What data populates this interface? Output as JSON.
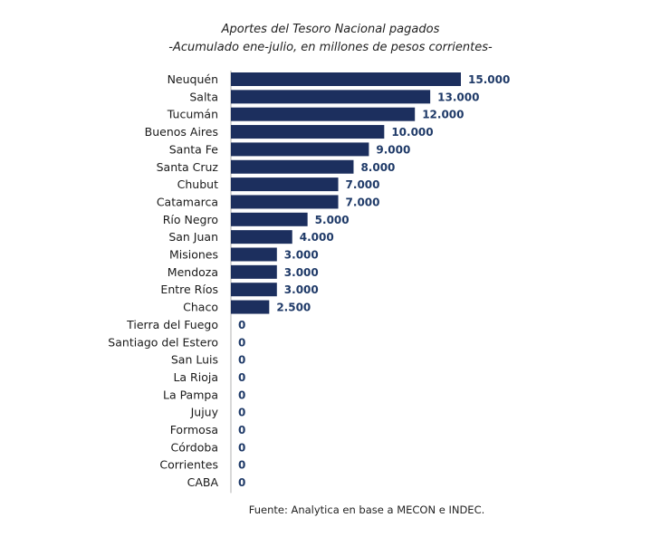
{
  "title": "Aportes del Tesoro Nacional pagados",
  "subtitle": "-Acumulado ene-julio, en millones de pesos corrientes-",
  "source": "Fuente: Analytica en base a MECON e INDEC.",
  "colors": {
    "bar": "#1c2f5e",
    "value_label": "#1f3a68",
    "axis": "#b0b0b0"
  },
  "chart_data": {
    "type": "bar",
    "orientation": "horizontal",
    "title": "Aportes del Tesoro Nacional pagados",
    "subtitle": "-Acumulado ene-julio, en millones de pesos corrientes-",
    "categories": [
      "Neuquén",
      "Salta",
      "Tucumán",
      "Buenos Aires",
      "Santa Fe",
      "Santa Cruz",
      "Chubut",
      "Catamarca",
      "Río Negro",
      "San Juan",
      "Misiones",
      "Mendoza",
      "Entre Ríos",
      "Chaco",
      "Tierra del Fuego",
      "Santiago del Estero",
      "San Luis",
      "La Rioja",
      "La Pampa",
      "Jujuy",
      "Formosa",
      "Córdoba",
      "Corrientes",
      "CABA"
    ],
    "values": [
      15000,
      13000,
      12000,
      10000,
      9000,
      8000,
      7000,
      7000,
      5000,
      4000,
      3000,
      3000,
      3000,
      2500,
      0,
      0,
      0,
      0,
      0,
      0,
      0,
      0,
      0,
      0
    ],
    "value_labels": [
      "15.000",
      "13.000",
      "12.000",
      "10.000",
      "9.000",
      "8.000",
      "7.000",
      "7.000",
      "5.000",
      "4.000",
      "3.000",
      "3.000",
      "3.000",
      "2.500",
      "0",
      "0",
      "0",
      "0",
      "0",
      "0",
      "0",
      "0",
      "0",
      "0"
    ],
    "xlim": [
      0,
      15000
    ],
    "grid": false,
    "legend": "none"
  }
}
